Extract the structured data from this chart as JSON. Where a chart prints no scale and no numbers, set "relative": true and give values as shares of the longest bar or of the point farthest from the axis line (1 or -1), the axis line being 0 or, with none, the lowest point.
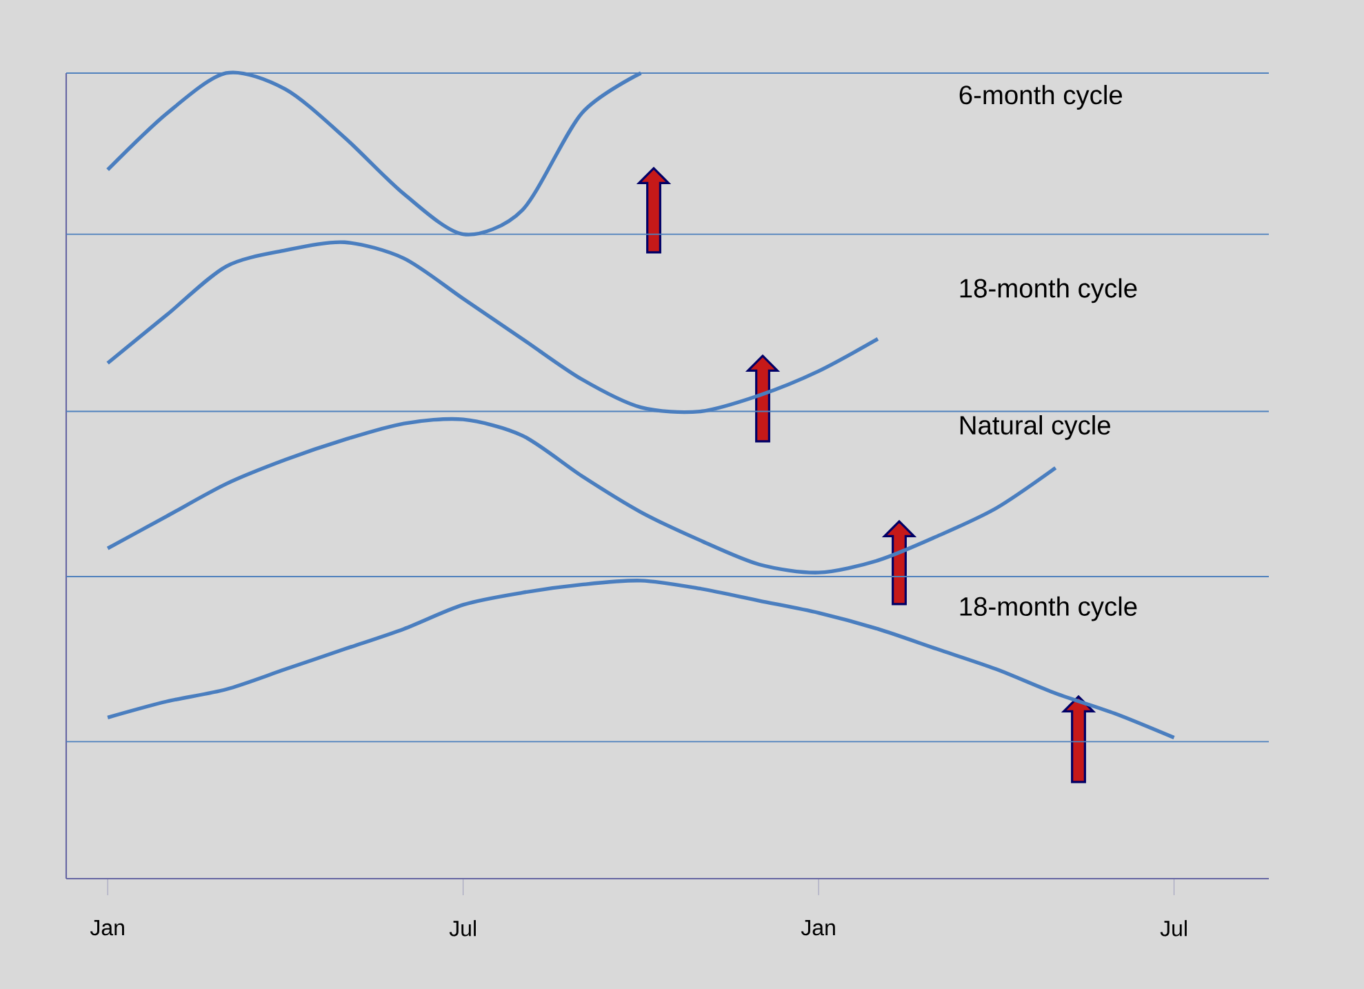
{
  "chart_data": {
    "type": "line",
    "relative": true,
    "categories": [
      "Jan",
      null,
      null,
      null,
      null,
      null,
      "Jul",
      null,
      null,
      null,
      null,
      null,
      "Jan",
      null,
      null,
      null,
      null,
      null,
      "Jul"
    ],
    "series": [
      {
        "color": "#4a7ebf",
        "values": [
          0.88,
          0.95,
          1.0,
          0.98,
          0.92,
          0.85,
          0.8,
          0.83,
          0.95,
          1.0,
          null,
          null,
          null,
          null,
          null,
          null,
          null,
          null,
          null
        ]
      },
      {
        "color": "#4a7ebf",
        "values": [
          0.64,
          0.7,
          0.76,
          0.78,
          0.79,
          0.77,
          0.72,
          0.67,
          0.62,
          0.585,
          0.58,
          0.6,
          0.63,
          0.67,
          null,
          null,
          null,
          null,
          null
        ]
      },
      {
        "color": "#4a7ebf",
        "values": [
          0.41,
          0.45,
          0.49,
          0.52,
          0.545,
          0.565,
          0.57,
          0.55,
          0.5,
          0.455,
          0.42,
          0.39,
          0.38,
          0.395,
          0.425,
          0.46,
          0.51,
          null,
          null
        ]
      },
      {
        "color": "#4a7ebf",
        "values": [
          0.2,
          0.22,
          0.235,
          0.26,
          0.285,
          0.31,
          0.34,
          0.355,
          0.365,
          0.37,
          0.36,
          0.345,
          0.33,
          0.31,
          0.285,
          0.26,
          0.23,
          0.205,
          0.175
        ]
      }
    ],
    "ref_lines": [
      {
        "axis": "y",
        "value": 1.0,
        "color": "#4f81bd"
      },
      {
        "axis": "y",
        "value": 0.8,
        "color": "#4f81bd"
      },
      {
        "axis": "y",
        "value": 0.58,
        "color": "#4f81bd"
      },
      {
        "axis": "y",
        "value": 0.375,
        "color": "#4f81bd"
      },
      {
        "axis": "y",
        "value": 0.17,
        "color": "#4f81bd"
      }
    ],
    "annotations": [
      "6-month cycle",
      "18-month cycle",
      "Natural cycle",
      "18-month cycle"
    ],
    "marker": "none",
    "line_style": "solid"
  }
}
